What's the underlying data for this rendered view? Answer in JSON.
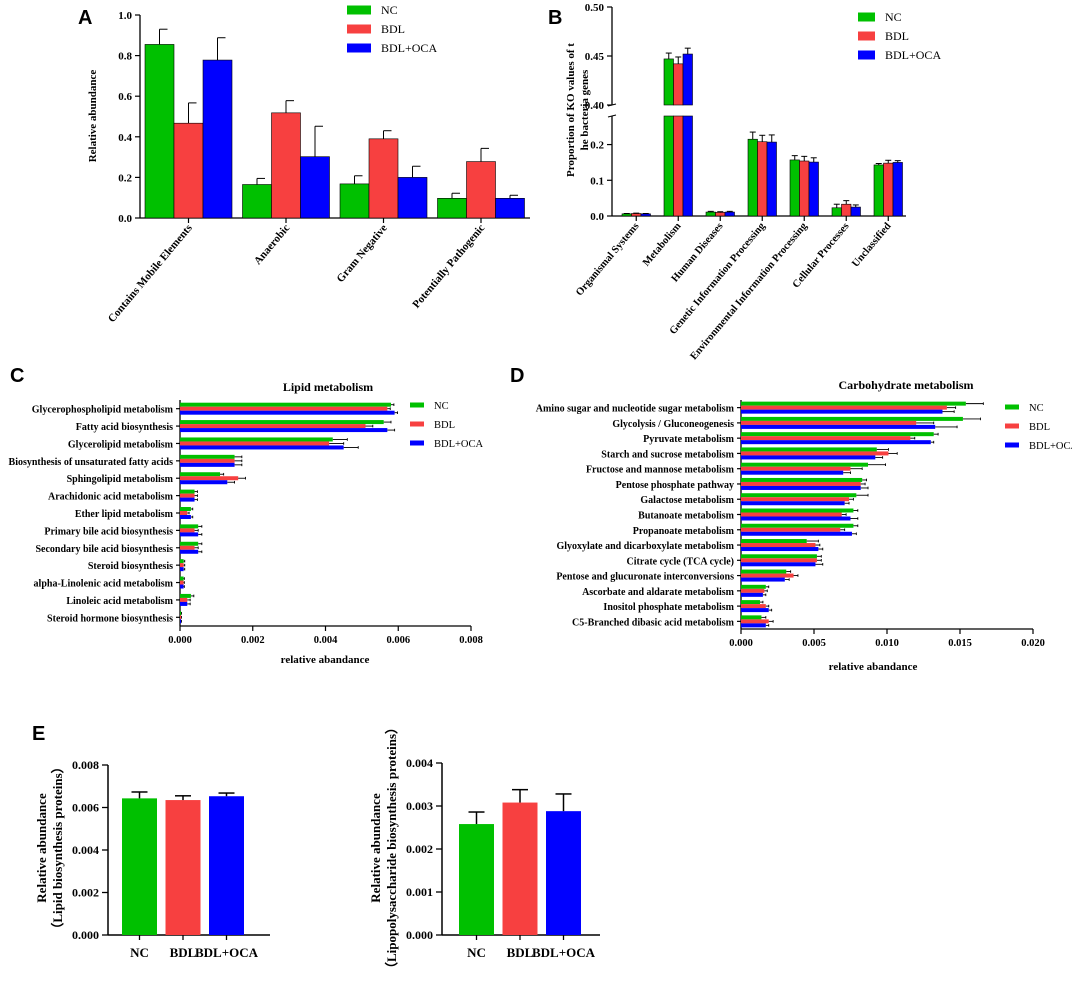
{
  "colors": {
    "NC": "#00c000",
    "BDL": "#f74040",
    "BDL+OCA": "#0000ff"
  },
  "legend": [
    "NC",
    "BDL",
    "BDL+OCA"
  ],
  "panels": {
    "A": "A",
    "B": "B",
    "C": "C",
    "D": "D",
    "E": "E"
  },
  "chart_data": [
    {
      "id": "A",
      "type": "bar",
      "title": "",
      "xlabel": "",
      "ylabel": "Relative abundance",
      "ylim": [
        0,
        1.0
      ],
      "yticks": [
        "0.0",
        "0.2",
        "0.4",
        "0.6",
        "0.8",
        "1.0"
      ],
      "categories": [
        "Contains Mobile Elements",
        "Anaerobic",
        "Gram Negative",
        "Potentially Pathogenic"
      ],
      "series": [
        {
          "name": "NC",
          "values": [
            0.855,
            0.165,
            0.168,
            0.097
          ],
          "errors": [
            0.075,
            0.03,
            0.04,
            0.025
          ]
        },
        {
          "name": "BDL",
          "values": [
            0.467,
            0.518,
            0.39,
            0.278
          ],
          "errors": [
            0.1,
            0.06,
            0.04,
            0.065
          ]
        },
        {
          "name": "BDL+OCA",
          "values": [
            0.778,
            0.302,
            0.2,
            0.097
          ],
          "errors": [
            0.11,
            0.15,
            0.055,
            0.015
          ]
        }
      ]
    },
    {
      "id": "B",
      "type": "bar",
      "title": "",
      "ylabel": "Proportion of KO values of the bacteria genes",
      "ylabel_lines": [
        "Proportion of KO values of t",
        "he bacteria genes"
      ],
      "ylim": [
        0,
        0.5
      ],
      "axis_break": [
        0.28,
        0.4
      ],
      "yticks_lower": [
        "0.0",
        "0.1",
        "0.2"
      ],
      "yticks_upper": [
        "0.40",
        "0.45",
        "0.50"
      ],
      "categories": [
        "Organismal Systems",
        "Metabolism",
        "Human Diseases",
        "Genetic Information Processing",
        "Environmental Information Processing",
        "Cellular Processes",
        "Unclassified"
      ],
      "series": [
        {
          "name": "NC",
          "values": [
            0.006,
            0.447,
            0.011,
            0.215,
            0.157,
            0.023,
            0.143
          ],
          "errors": [
            0.001,
            0.006,
            0.002,
            0.02,
            0.012,
            0.01,
            0.004
          ]
        },
        {
          "name": "BDL",
          "values": [
            0.007,
            0.442,
            0.01,
            0.208,
            0.154,
            0.033,
            0.148
          ],
          "errors": [
            0.001,
            0.007,
            0.002,
            0.018,
            0.013,
            0.01,
            0.008
          ]
        },
        {
          "name": "BDL+OCA",
          "values": [
            0.006,
            0.452,
            0.011,
            0.207,
            0.151,
            0.025,
            0.15
          ],
          "errors": [
            0.001,
            0.006,
            0.002,
            0.02,
            0.012,
            0.006,
            0.005
          ]
        }
      ]
    },
    {
      "id": "C",
      "type": "bar",
      "orientation": "horizontal",
      "title": "Lipid metabolism",
      "xlabel": "relative abandance",
      "xlim": [
        0,
        0.008
      ],
      "xticks": [
        "0.000",
        "0.002",
        "0.004",
        "0.006",
        "0.008"
      ],
      "categories": [
        "Glycerophospholipid metabolism",
        "Fatty acid biosynthesis",
        "Glycerolipid metabolism",
        "Biosynthesis of unsaturated fatty acids",
        "Sphingolipid metabolism",
        "Arachidonic acid metabolism",
        "Ether lipid metabolism",
        "Primary bile acid biosynthesis",
        "Secondary bile acid biosynthesis",
        "Steroid biosynthesis",
        "alpha-Linolenic acid metabolism",
        "Linoleic acid metabolism",
        "Steroid hormone biosynthesis"
      ],
      "series": [
        {
          "name": "NC",
          "values": [
            0.0058,
            0.0056,
            0.0042,
            0.0015,
            0.0011,
            0.0004,
            0.0003,
            0.0005,
            0.0005,
            0.0001,
            0.0001,
            0.0003,
            3e-05
          ],
          "errors": [
            8e-05,
            0.0002,
            0.0004,
            0.0002,
            0.0001,
            8e-05,
            5e-05,
            0.0001,
            0.0001,
            3e-05,
            2e-05,
            8e-05,
            1e-05
          ]
        },
        {
          "name": "BDL",
          "values": [
            0.0057,
            0.0051,
            0.0041,
            0.0015,
            0.0016,
            0.0004,
            0.0002,
            0.0004,
            0.0004,
            0.0001,
            0.0001,
            0.0002,
            3e-05
          ],
          "errors": [
            8e-05,
            0.0002,
            0.0004,
            0.0002,
            0.0002,
            8e-05,
            5e-05,
            0.0001,
            0.0001,
            3e-05,
            2e-05,
            8e-05,
            1e-05
          ]
        },
        {
          "name": "BDL+OCA",
          "values": [
            0.0059,
            0.0057,
            0.0045,
            0.0015,
            0.0013,
            0.0004,
            0.0003,
            0.0005,
            0.0005,
            0.0001,
            0.0001,
            0.0002,
            3e-05
          ],
          "errors": [
            8e-05,
            0.0002,
            0.0004,
            0.0002,
            0.0002,
            8e-05,
            5e-05,
            0.0001,
            0.0001,
            3e-05,
            2e-05,
            8e-05,
            1e-05
          ]
        }
      ]
    },
    {
      "id": "D",
      "type": "bar",
      "orientation": "horizontal",
      "title": "Carbohydrate metabolism",
      "xlabel": "relative abandance",
      "xlim": [
        0,
        0.02
      ],
      "xticks": [
        "0.000",
        "0.005",
        "0.010",
        "0.015",
        "0.020"
      ],
      "categories": [
        "Amino sugar and nucleotide sugar metabolism",
        "Glycolysis / Gluconeogenesis",
        "Pyruvate metabolism",
        "Starch and sucrose metabolism",
        "Fructose and mannose metabolism",
        "Pentose phosphate pathway",
        "Galactose metabolism",
        "Butanoate metabolism",
        "Propanoate metabolism",
        "Glyoxylate and dicarboxylate metabolism",
        "Citrate cycle (TCA cycle)",
        "Pentose and glucuronate interconversions",
        "Ascorbate and aldarate metabolism",
        "Inositol phosphate metabolism",
        "C5-Branched dibasic acid metabolism"
      ],
      "series": [
        {
          "name": "NC",
          "values": [
            0.0154,
            0.0152,
            0.0132,
            0.0093,
            0.0087,
            0.0083,
            0.0079,
            0.0077,
            0.0077,
            0.0045,
            0.0052,
            0.0031,
            0.0017,
            0.0013,
            0.0014
          ],
          "errors": [
            0.0012,
            0.0012,
            0.0003,
            0.0008,
            0.0012,
            0.0003,
            0.0008,
            0.0003,
            0.0003,
            0.0008,
            0.0003,
            0.0003,
            0.0002,
            0.0002,
            0.0003
          ]
        },
        {
          "name": "BDL",
          "values": [
            0.0141,
            0.012,
            0.0116,
            0.0101,
            0.0075,
            0.0082,
            0.0074,
            0.0069,
            0.0068,
            0.0051,
            0.0052,
            0.0036,
            0.0016,
            0.0017,
            0.0019
          ],
          "errors": [
            0.0006,
            0.0012,
            0.0003,
            0.0006,
            0.0008,
            0.0003,
            0.0003,
            0.0003,
            0.0003,
            0.0003,
            0.0003,
            0.0003,
            0.0002,
            0.0002,
            0.0003
          ]
        },
        {
          "name": "BDL+OCA",
          "values": [
            0.0138,
            0.0133,
            0.013,
            0.0092,
            0.007,
            0.0082,
            0.0071,
            0.0075,
            0.0076,
            0.0053,
            0.0051,
            0.003,
            0.0015,
            0.0019,
            0.0017
          ],
          "errors": [
            0.0008,
            0.0015,
            0.0002,
            0.0005,
            0.0005,
            0.0005,
            0.0003,
            0.0005,
            0.0003,
            0.0003,
            0.0005,
            0.0003,
            0.0002,
            0.0002,
            0.0002
          ]
        }
      ]
    },
    {
      "id": "E1",
      "type": "bar",
      "ylabel_lines": [
        "Relative abundance",
        "（Lipid biosynthesis proteins）"
      ],
      "ylim": [
        0,
        0.008
      ],
      "yticks": [
        "0.000",
        "0.002",
        "0.004",
        "0.006",
        "0.008"
      ],
      "categories": [
        "NC",
        "BDL",
        "BDL+OCA"
      ],
      "values": [
        0.00643,
        0.00635,
        0.00653
      ],
      "errors": [
        0.0003,
        0.0002,
        0.00015
      ]
    },
    {
      "id": "E2",
      "type": "bar",
      "ylabel_lines": [
        "Relative abundance",
        "（Lipopolysaccharide biosynthesis proteins）"
      ],
      "ylim": [
        0,
        0.004
      ],
      "yticks": [
        "0.000",
        "0.001",
        "0.002",
        "0.003",
        "0.004"
      ],
      "categories": [
        "NC",
        "BDL",
        "BDL+OCA"
      ],
      "values": [
        0.00258,
        0.00308,
        0.00288
      ],
      "errors": [
        0.00028,
        0.0003,
        0.0004
      ]
    }
  ]
}
